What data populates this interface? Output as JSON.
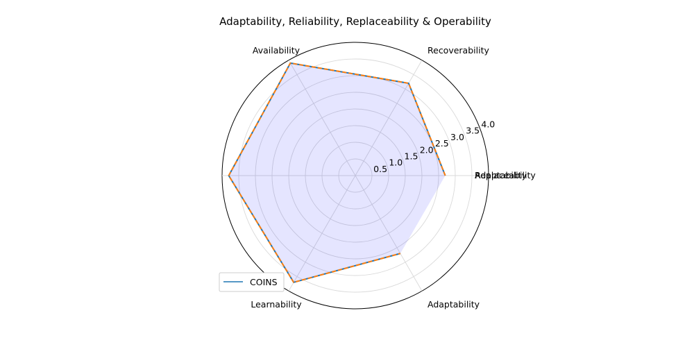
{
  "chart_data": {
    "type": "radar",
    "title": "Adaptability, Reliability, Replaceability & Operability",
    "axes": [
      "Adaptability",
      "Recoverability",
      "Availability",
      "Replaceability",
      "Learnability",
      "Adaptability"
    ],
    "radial_ticks": [
      "0.5",
      "1.0",
      "1.5",
      "2.0",
      "2.5",
      "3.0",
      "3.5",
      "4.0"
    ],
    "rlim": [
      0,
      4
    ],
    "grid": true,
    "legend_position": "lower-left",
    "series": [
      {
        "name": "COINS",
        "values": [
          2.7,
          3.2,
          3.9,
          3.8,
          3.7,
          2.7
        ],
        "color": "#1f77b4",
        "style": "solid"
      },
      {
        "values": [
          2.7,
          3.2,
          3.9,
          3.8,
          3.7,
          2.7
        ],
        "color": "#ff7f0e",
        "style": "dashed"
      }
    ],
    "fill_color": "#0000ff",
    "fill_opacity": 0.1
  }
}
